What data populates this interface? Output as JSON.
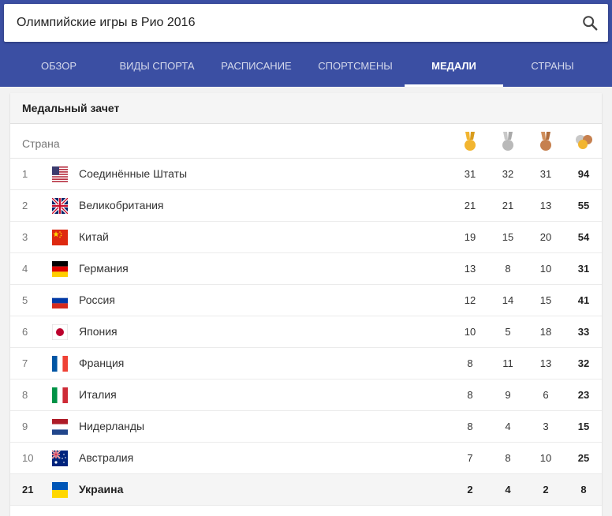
{
  "search": {
    "query": "Олимпийские игры в Рио 2016"
  },
  "tabs": [
    {
      "label": "ОБЗОР",
      "active": false
    },
    {
      "label": "ВИДЫ СПОРТА",
      "active": false
    },
    {
      "label": "РАСПИСАНИЕ",
      "active": false
    },
    {
      "label": "СПОРТСМЕНЫ",
      "active": false
    },
    {
      "label": "МЕДАЛИ",
      "active": true
    },
    {
      "label": "СТРАНЫ",
      "active": false
    }
  ],
  "card": {
    "title": "Медальный зачет",
    "country_header": "Страна",
    "medal_icons": [
      "gold-medal-icon",
      "silver-medal-icon",
      "bronze-medal-icon",
      "total-medals-icon"
    ]
  },
  "colors": {
    "header_bg": "#3b4fa3",
    "gold": "#f2b530",
    "silver": "#b9b9b9",
    "bronze": "#c6804f"
  },
  "rows": [
    {
      "rank": "1",
      "country": "Соединённые Штаты",
      "flag": "us-flag-icon",
      "gold": "31",
      "silver": "32",
      "bronze": "31",
      "total": "94"
    },
    {
      "rank": "2",
      "country": "Великобритания",
      "flag": "gb-flag-icon",
      "gold": "21",
      "silver": "21",
      "bronze": "13",
      "total": "55"
    },
    {
      "rank": "3",
      "country": "Китай",
      "flag": "cn-flag-icon",
      "gold": "19",
      "silver": "15",
      "bronze": "20",
      "total": "54"
    },
    {
      "rank": "4",
      "country": "Германия",
      "flag": "de-flag-icon",
      "gold": "13",
      "silver": "8",
      "bronze": "10",
      "total": "31"
    },
    {
      "rank": "5",
      "country": "Россия",
      "flag": "ru-flag-icon",
      "gold": "12",
      "silver": "14",
      "bronze": "15",
      "total": "41"
    },
    {
      "rank": "6",
      "country": "Япония",
      "flag": "jp-flag-icon",
      "gold": "10",
      "silver": "5",
      "bronze": "18",
      "total": "33"
    },
    {
      "rank": "7",
      "country": "Франция",
      "flag": "fr-flag-icon",
      "gold": "8",
      "silver": "11",
      "bronze": "13",
      "total": "32"
    },
    {
      "rank": "8",
      "country": "Италия",
      "flag": "it-flag-icon",
      "gold": "8",
      "silver": "9",
      "bronze": "6",
      "total": "23"
    },
    {
      "rank": "9",
      "country": "Нидерланды",
      "flag": "nl-flag-icon",
      "gold": "8",
      "silver": "4",
      "bronze": "3",
      "total": "15"
    },
    {
      "rank": "10",
      "country": "Австралия",
      "flag": "au-flag-icon",
      "gold": "7",
      "silver": "8",
      "bronze": "10",
      "total": "25"
    },
    {
      "rank": "21",
      "country": "Украина",
      "flag": "ua-flag-icon",
      "gold": "2",
      "silver": "4",
      "bronze": "2",
      "total": "8",
      "highlight": true
    }
  ]
}
